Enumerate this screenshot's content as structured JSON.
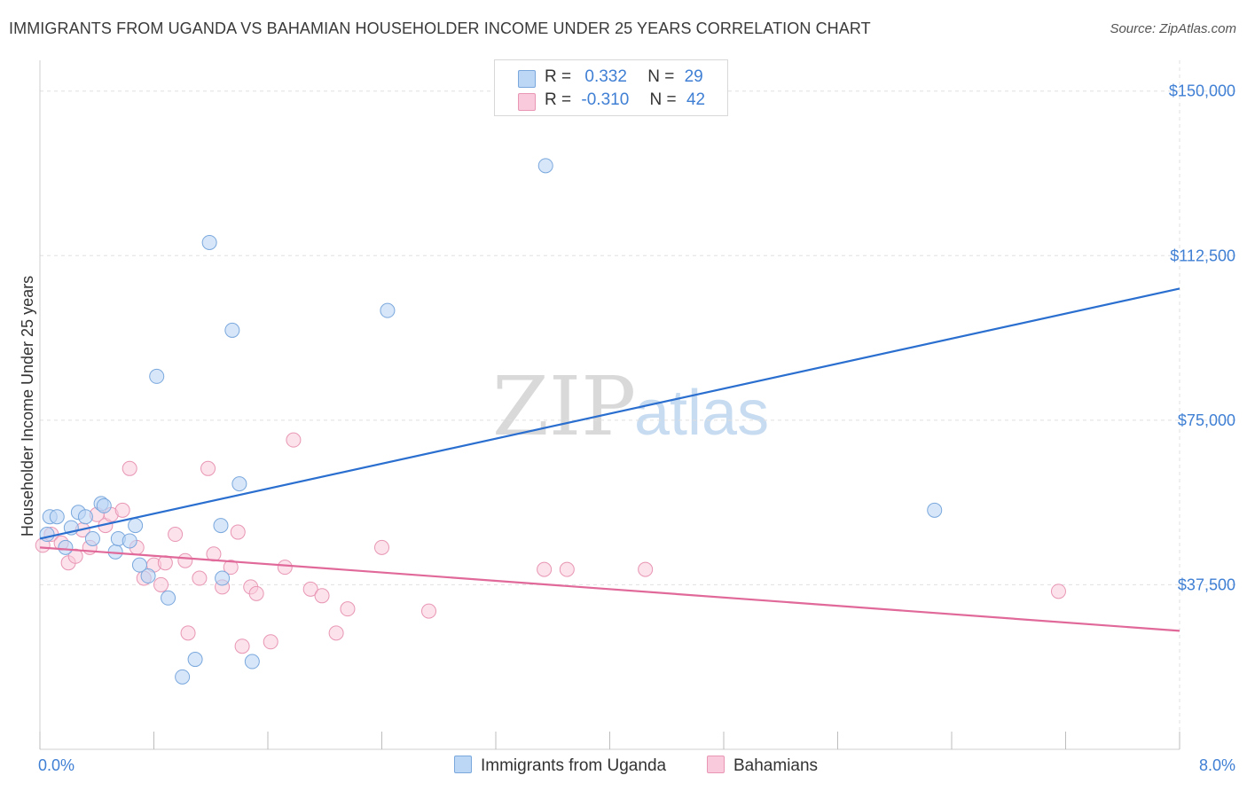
{
  "title": "IMMIGRANTS FROM UGANDA VS BAHAMIAN HOUSEHOLDER INCOME UNDER 25 YEARS CORRELATION CHART",
  "source": "Source: ZipAtlas.com",
  "watermark": {
    "zip": "ZIP",
    "atlas": "atlas"
  },
  "legend": {
    "rows": [
      {
        "r_label": "R =",
        "r_value": "0.332",
        "n_label": "N =",
        "n_value": "29"
      },
      {
        "r_label": "R =",
        "r_value": "-0.310",
        "n_label": "N =",
        "n_value": "42"
      }
    ]
  },
  "bottom_legend": {
    "uganda": "Immigrants from Uganda",
    "bahamians": "Bahamians"
  },
  "colors": {
    "uganda_fill": "#bcd6f5",
    "uganda_stroke": "#7aa8dd",
    "uganda_line": "#2a6fcf",
    "bahamian_fill": "#f9cadb",
    "bahamian_stroke": "#e896b4",
    "bahamian_line": "#e0699a",
    "tick_text": "#3f7fd4",
    "grid": "#e0e0e0"
  },
  "chart_data": {
    "type": "scatter",
    "title": "IMMIGRANTS FROM UGANDA VS BAHAMIAN HOUSEHOLDER INCOME UNDER 25 YEARS CORRELATION CHART",
    "xlabel": "",
    "ylabel": "Householder Income Under 25 years",
    "xlim": [
      0,
      8
    ],
    "ylim": [
      0,
      155000
    ],
    "x_tick_labels": [
      "0.0%",
      "8.0%"
    ],
    "y_ticks": [
      37500,
      75000,
      112500,
      150000
    ],
    "y_tick_labels": [
      "$37,500",
      "$75,000",
      "$112,500",
      "$150,000"
    ],
    "grid": true,
    "legend_position": "top-center",
    "series": [
      {
        "name": "Immigrants from Uganda",
        "R": 0.332,
        "N": 29,
        "trend": {
          "x": [
            0,
            8
          ],
          "y": [
            48000,
            105000
          ]
        },
        "points": [
          {
            "x": 0.05,
            "y": 49000
          },
          {
            "x": 0.07,
            "y": 53000
          },
          {
            "x": 0.12,
            "y": 53000
          },
          {
            "x": 0.18,
            "y": 46000
          },
          {
            "x": 0.22,
            "y": 50500
          },
          {
            "x": 0.27,
            "y": 54000
          },
          {
            "x": 0.32,
            "y": 53000
          },
          {
            "x": 0.37,
            "y": 48000
          },
          {
            "x": 0.43,
            "y": 56000
          },
          {
            "x": 0.45,
            "y": 55500
          },
          {
            "x": 0.53,
            "y": 45000
          },
          {
            "x": 0.55,
            "y": 48000
          },
          {
            "x": 0.63,
            "y": 47500
          },
          {
            "x": 0.67,
            "y": 51000
          },
          {
            "x": 0.7,
            "y": 42000
          },
          {
            "x": 0.76,
            "y": 39500
          },
          {
            "x": 0.82,
            "y": 85000
          },
          {
            "x": 0.9,
            "y": 34500
          },
          {
            "x": 1.0,
            "y": 16500
          },
          {
            "x": 1.09,
            "y": 20500
          },
          {
            "x": 1.19,
            "y": 115500
          },
          {
            "x": 1.27,
            "y": 51000
          },
          {
            "x": 1.28,
            "y": 39000
          },
          {
            "x": 1.35,
            "y": 95500
          },
          {
            "x": 1.4,
            "y": 60500
          },
          {
            "x": 1.49,
            "y": 20000
          },
          {
            "x": 2.44,
            "y": 100000
          },
          {
            "x": 3.55,
            "y": 133000
          },
          {
            "x": 6.28,
            "y": 54500
          }
        ]
      },
      {
        "name": "Bahamians",
        "R": -0.31,
        "N": 42,
        "trend": {
          "x": [
            0,
            8
          ],
          "y": [
            46000,
            27000
          ]
        },
        "points": [
          {
            "x": 0.02,
            "y": 46500
          },
          {
            "x": 0.08,
            "y": 49000
          },
          {
            "x": 0.15,
            "y": 47000
          },
          {
            "x": 0.2,
            "y": 42500
          },
          {
            "x": 0.25,
            "y": 44000
          },
          {
            "x": 0.3,
            "y": 50000
          },
          {
            "x": 0.35,
            "y": 46000
          },
          {
            "x": 0.4,
            "y": 53500
          },
          {
            "x": 0.46,
            "y": 51000
          },
          {
            "x": 0.5,
            "y": 53500
          },
          {
            "x": 0.58,
            "y": 54500
          },
          {
            "x": 0.63,
            "y": 64000
          },
          {
            "x": 0.68,
            "y": 46000
          },
          {
            "x": 0.73,
            "y": 39000
          },
          {
            "x": 0.8,
            "y": 42000
          },
          {
            "x": 0.85,
            "y": 37500
          },
          {
            "x": 0.88,
            "y": 42500
          },
          {
            "x": 0.95,
            "y": 49000
          },
          {
            "x": 1.02,
            "y": 43000
          },
          {
            "x": 1.04,
            "y": 26500
          },
          {
            "x": 1.12,
            "y": 39000
          },
          {
            "x": 1.18,
            "y": 64000
          },
          {
            "x": 1.22,
            "y": 44500
          },
          {
            "x": 1.28,
            "y": 37000
          },
          {
            "x": 1.34,
            "y": 41500
          },
          {
            "x": 1.39,
            "y": 49500
          },
          {
            "x": 1.42,
            "y": 23500
          },
          {
            "x": 1.48,
            "y": 37000
          },
          {
            "x": 1.52,
            "y": 35500
          },
          {
            "x": 1.62,
            "y": 24500
          },
          {
            "x": 1.72,
            "y": 41500
          },
          {
            "x": 1.78,
            "y": 70500
          },
          {
            "x": 1.9,
            "y": 36500
          },
          {
            "x": 1.98,
            "y": 35000
          },
          {
            "x": 2.08,
            "y": 26500
          },
          {
            "x": 2.16,
            "y": 32000
          },
          {
            "x": 2.4,
            "y": 46000
          },
          {
            "x": 2.73,
            "y": 31500
          },
          {
            "x": 3.54,
            "y": 41000
          },
          {
            "x": 3.7,
            "y": 41000
          },
          {
            "x": 4.25,
            "y": 41000
          },
          {
            "x": 7.15,
            "y": 36000
          }
        ]
      }
    ]
  }
}
